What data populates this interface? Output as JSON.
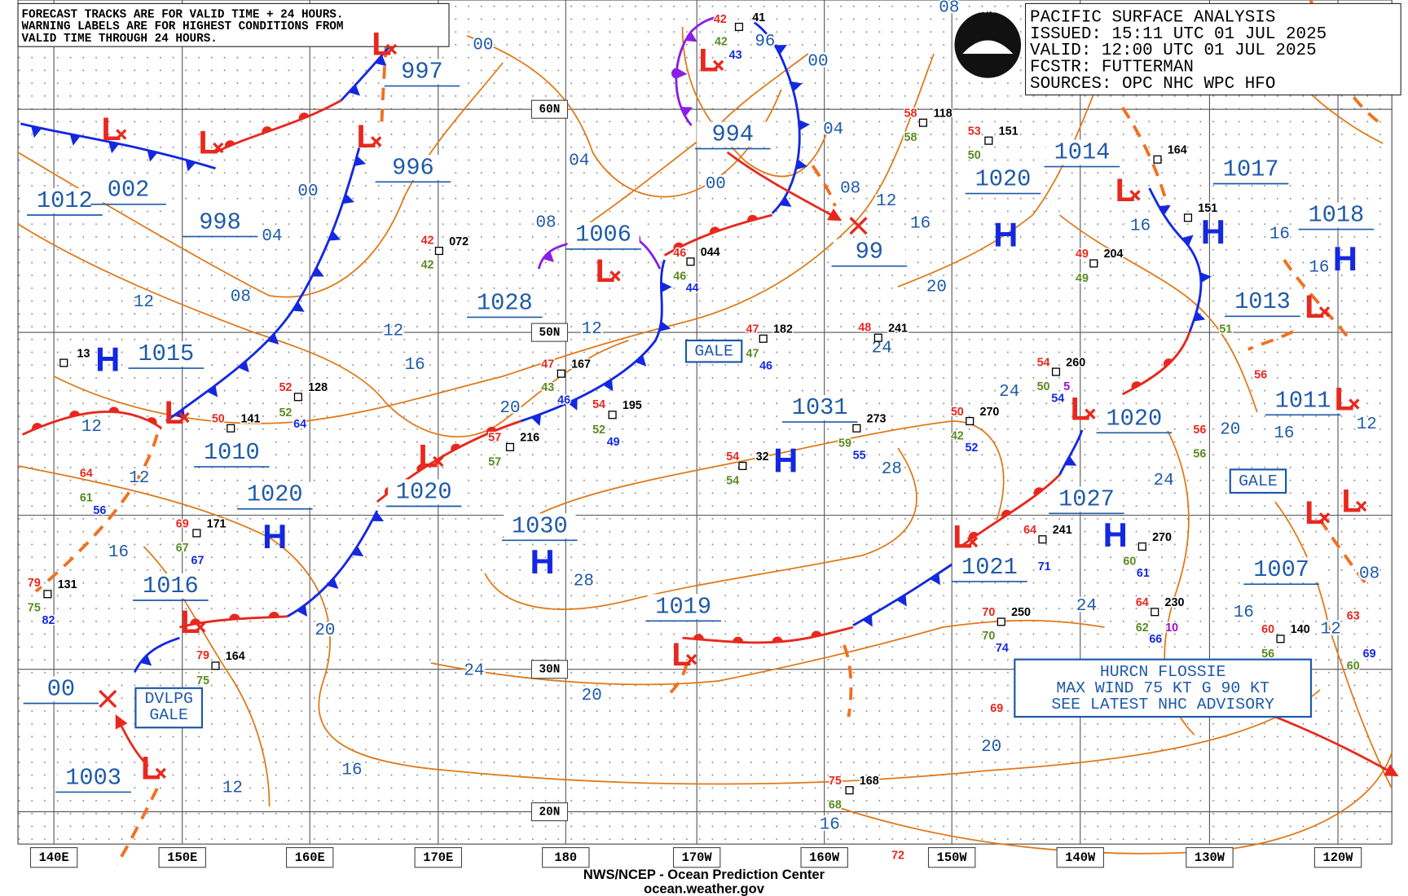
{
  "header_note": [
    "FORECAST TRACKS ARE FOR VALID TIME + 24 HOURS.",
    "WARNING LABELS ARE FOR HIGHEST CONDITIONS FROM",
    "VALID TIME THROUGH 24 HOURS."
  ],
  "info": [
    "PACIFIC SURFACE ANALYSIS",
    "ISSUED: 15:11 UTC 01 JUL 2025",
    "VALID:  12:00 UTC 01 JUL 2025",
    "FCSTR:  FUTTERMAN",
    "SOURCES: OPC NHC WPC HFO"
  ],
  "logo": "NOAA",
  "latitudes": [
    "60N",
    "50N",
    "30N",
    "20N"
  ],
  "longitudes": [
    "140E",
    "150E",
    "160E",
    "170E",
    "180",
    "170W",
    "160W",
    "150W",
    "140W",
    "130W",
    "120W"
  ],
  "high_symbol": "H",
  "low_symbol": "L",
  "pressures": [
    "997",
    "1012",
    "002",
    "998",
    "996",
    "1006",
    "1028",
    "994",
    "99",
    "1020",
    "1014",
    "1017",
    "1018",
    "1015",
    "1010",
    "1020",
    "1020",
    "1013",
    "1031",
    "1020",
    "1011",
    "1030",
    "1027",
    "1016",
    "1021",
    "1007",
    "1019",
    "1003",
    "00"
  ],
  "isobars": [
    "00",
    "00",
    "00",
    "00",
    "04",
    "04",
    "04",
    "08",
    "08",
    "08",
    "08",
    "08",
    "12",
    "12",
    "12",
    "12",
    "12",
    "12",
    "12",
    "12",
    "12",
    "16",
    "16",
    "16",
    "16",
    "16",
    "16",
    "16",
    "16",
    "16",
    "16",
    "20",
    "20",
    "20",
    "20",
    "20",
    "20",
    "24",
    "24",
    "24",
    "24",
    "24",
    "28",
    "28",
    "96"
  ],
  "warnings": [
    "GALE",
    "GALE",
    "DVLPG",
    "GALE"
  ],
  "hurricane": [
    "HURCN FLOSSIE",
    "MAX WIND 75 KT G 90 KT",
    "SEE LATEST NHC ADVISORY"
  ],
  "stations": [
    "41",
    "42",
    "42",
    "43",
    "072",
    "42",
    "42",
    "044",
    "46",
    "46",
    "44",
    "182",
    "47",
    "47",
    "46",
    "241",
    "48",
    "167",
    "47",
    "43",
    "46",
    "195",
    "54",
    "52",
    "49",
    "216",
    "57",
    "57",
    "128",
    "52",
    "52",
    "64",
    "141",
    "50",
    "273",
    "59",
    "55",
    "32",
    "54",
    "54",
    "270",
    "50",
    "42",
    "52",
    "260",
    "54",
    "50",
    "54",
    "5",
    "241",
    "64",
    "71",
    "270",
    "60",
    "61",
    "230",
    "64",
    "62",
    "66",
    "10",
    "250",
    "70",
    "70",
    "74",
    "69",
    "171",
    "69",
    "67",
    "67",
    "164",
    "79",
    "75",
    "131",
    "79",
    "75",
    "82",
    "64",
    "61",
    "56",
    "13",
    "168",
    "75",
    "68",
    "204",
    "49",
    "49",
    "151",
    "53",
    "50",
    "118",
    "58",
    "58",
    "164",
    "151",
    "140",
    "60",
    "56",
    "60",
    "69",
    "63",
    "56",
    "56",
    "56",
    "51",
    "72"
  ],
  "footer": [
    "NWS/NCEP - Ocean Prediction Center",
    "ocean.weather.gov"
  ]
}
